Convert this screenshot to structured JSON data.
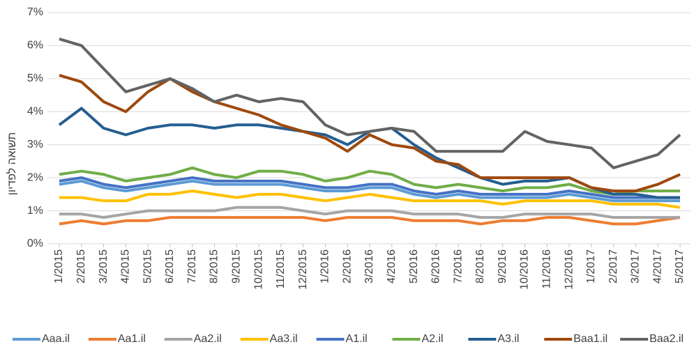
{
  "chart_data": {
    "type": "line",
    "y_axis_label": "תשואה לפדיון",
    "categories": [
      "1/2015",
      "2/2015",
      "3/2015",
      "4/2015",
      "5/2015",
      "6/2015",
      "7/2015",
      "8/2015",
      "9/2015",
      "10/2015",
      "11/2015",
      "12/2015",
      "1/2016",
      "2/2016",
      "3/2016",
      "4/2016",
      "5/2016",
      "6/2016",
      "7/2016",
      "8/2016",
      "9/2016",
      "10/2016",
      "11/2016",
      "12/2016",
      "1/2017",
      "2/2017",
      "3/2017",
      "4/2017",
      "5/2017"
    ],
    "ylim": [
      0,
      7
    ],
    "yticks": [
      {
        "value": 0,
        "label": "0%"
      },
      {
        "value": 1,
        "label": "1%"
      },
      {
        "value": 2,
        "label": "2%"
      },
      {
        "value": 3,
        "label": "3%"
      },
      {
        "value": 4,
        "label": "4%"
      },
      {
        "value": 5,
        "label": "5%"
      },
      {
        "value": 6,
        "label": "6%"
      },
      {
        "value": 7,
        "label": "7%"
      }
    ],
    "grid": true,
    "legend": "bottom",
    "series": [
      {
        "name": "Aaa.il",
        "color": "#5b9bd5",
        "values": [
          1.8,
          1.9,
          1.7,
          1.6,
          1.7,
          1.8,
          1.9,
          1.8,
          1.8,
          1.8,
          1.8,
          1.7,
          1.6,
          1.6,
          1.7,
          1.7,
          1.5,
          1.4,
          1.5,
          1.4,
          1.4,
          1.4,
          1.4,
          1.5,
          1.4,
          1.3,
          1.3,
          1.3,
          1.3
        ]
      },
      {
        "name": "Aa1.il",
        "color": "#ed7d31",
        "values": [
          0.6,
          0.7,
          0.6,
          0.7,
          0.7,
          0.8,
          0.8,
          0.8,
          0.8,
          0.8,
          0.8,
          0.8,
          0.7,
          0.8,
          0.8,
          0.8,
          0.7,
          0.7,
          0.7,
          0.6,
          0.7,
          0.7,
          0.8,
          0.8,
          0.7,
          0.6,
          0.6,
          0.7,
          0.8
        ]
      },
      {
        "name": "Aa2.il",
        "color": "#a5a5a5",
        "values": [
          0.9,
          0.9,
          0.8,
          0.9,
          1.0,
          1.0,
          1.0,
          1.0,
          1.1,
          1.1,
          1.1,
          1.0,
          0.9,
          1.0,
          1.0,
          1.0,
          0.9,
          0.9,
          0.9,
          0.8,
          0.8,
          0.9,
          0.9,
          0.9,
          0.9,
          0.8,
          0.8,
          0.8,
          0.8
        ]
      },
      {
        "name": "Aa3.il",
        "color": "#ffc000",
        "values": [
          1.4,
          1.4,
          1.3,
          1.3,
          1.5,
          1.5,
          1.6,
          1.5,
          1.4,
          1.5,
          1.5,
          1.4,
          1.3,
          1.4,
          1.5,
          1.4,
          1.3,
          1.3,
          1.3,
          1.3,
          1.2,
          1.3,
          1.3,
          1.3,
          1.3,
          1.2,
          1.2,
          1.2,
          1.1
        ]
      },
      {
        "name": "A1.il",
        "color": "#4472c4",
        "values": [
          1.9,
          2.0,
          1.8,
          1.7,
          1.8,
          1.9,
          2.0,
          1.9,
          1.9,
          1.9,
          1.9,
          1.8,
          1.7,
          1.7,
          1.8,
          1.8,
          1.6,
          1.5,
          1.6,
          1.5,
          1.5,
          1.5,
          1.5,
          1.6,
          1.5,
          1.4,
          1.4,
          1.4,
          1.4
        ]
      },
      {
        "name": "A2.il",
        "color": "#70ad47",
        "values": [
          2.1,
          2.2,
          2.1,
          1.9,
          2.0,
          2.1,
          2.3,
          2.1,
          2.0,
          2.2,
          2.2,
          2.1,
          1.9,
          2.0,
          2.2,
          2.1,
          1.8,
          1.7,
          1.8,
          1.7,
          1.6,
          1.7,
          1.7,
          1.8,
          1.6,
          1.5,
          1.6,
          1.6,
          1.6
        ]
      },
      {
        "name": "A3.il",
        "color": "#255e91",
        "values": [
          3.6,
          4.1,
          3.5,
          3.3,
          3.5,
          3.6,
          3.6,
          3.5,
          3.6,
          3.6,
          3.5,
          3.4,
          3.3,
          3.0,
          3.4,
          3.5,
          3.0,
          2.6,
          2.3,
          2.0,
          1.8,
          1.9,
          1.9,
          2.0,
          1.7,
          1.5,
          1.5,
          1.4,
          1.4
        ]
      },
      {
        "name": "Baa1.il",
        "color": "#9e480e",
        "values": [
          5.1,
          4.9,
          4.3,
          4.0,
          4.6,
          5.0,
          4.6,
          4.3,
          4.1,
          3.9,
          3.6,
          3.4,
          3.2,
          2.8,
          3.3,
          3.0,
          2.9,
          2.5,
          2.4,
          2.0,
          2.0,
          2.0,
          2.0,
          2.0,
          1.7,
          1.6,
          1.6,
          1.8,
          2.1
        ]
      },
      {
        "name": "Baa2.il",
        "color": "#636363",
        "values": [
          6.2,
          6.0,
          5.3,
          4.6,
          4.8,
          5.0,
          4.7,
          4.3,
          4.5,
          4.3,
          4.4,
          4.3,
          3.6,
          3.3,
          3.4,
          3.5,
          3.4,
          2.8,
          2.8,
          2.8,
          2.8,
          3.4,
          3.1,
          3.0,
          2.9,
          2.3,
          2.5,
          2.7,
          3.3
        ]
      }
    ]
  }
}
